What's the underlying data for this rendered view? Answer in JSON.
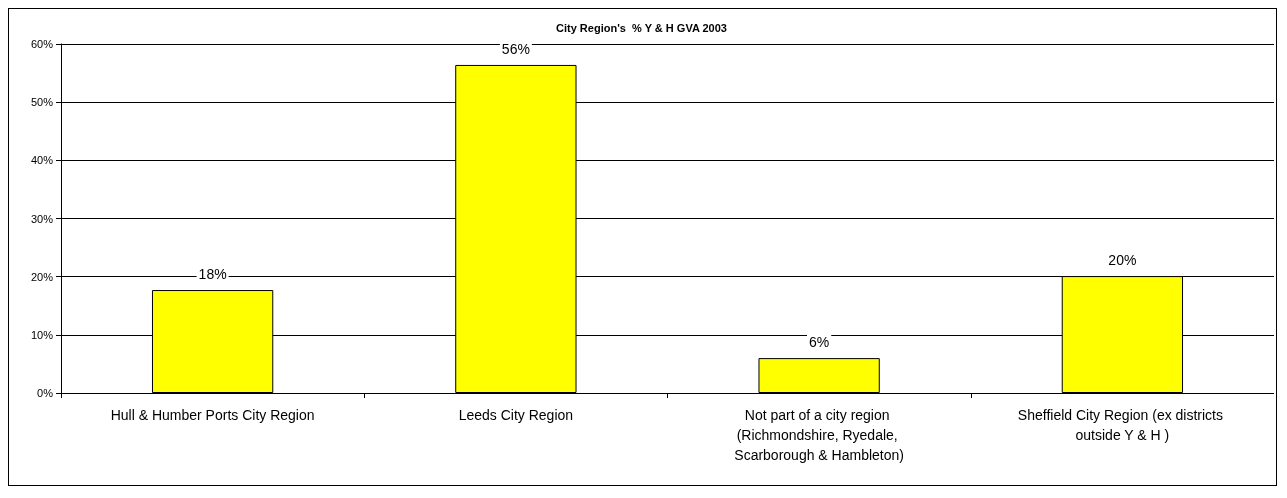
{
  "chart_data": {
    "type": "bar",
    "title": "City Region's  % Y & H GVA 2003",
    "categories": [
      "Hull & Humber Ports City Region",
      "Leeds City Region",
      "Not part of a city region (Richmondshire, Ryedale, Scarborough & Hambleton)",
      "Sheffield City Region (ex districts outside Y & H )"
    ],
    "values": [
      17.7,
      56.4,
      6.0,
      20.1
    ],
    "value_labels": [
      "18%",
      "56%",
      "6%",
      "20%"
    ],
    "color": "#ffff00",
    "ylim": [
      0,
      60
    ],
    "yticks": [
      {
        "value": 0,
        "label": "0%"
      },
      {
        "value": 10,
        "label": "10%"
      },
      {
        "value": 20,
        "label": "20%"
      },
      {
        "value": 30,
        "label": "30%"
      },
      {
        "value": 40,
        "label": "40%"
      },
      {
        "value": 50,
        "label": "50%"
      },
      {
        "value": 60,
        "label": "60%"
      }
    ],
    "grid": "y"
  }
}
